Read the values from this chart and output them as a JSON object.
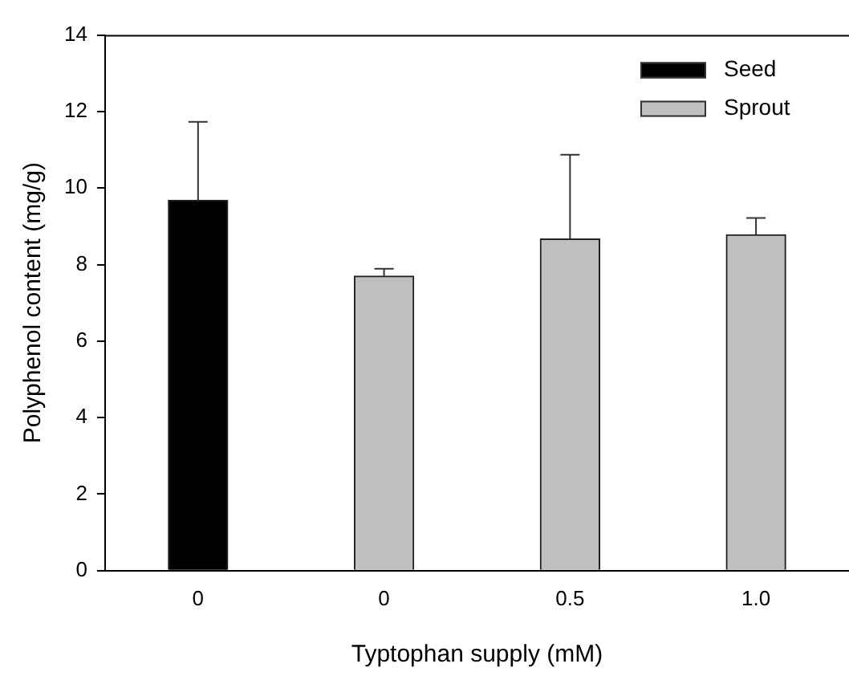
{
  "chart_data": {
    "type": "bar",
    "xlabel": "Typtophan supply (mM)",
    "ylabel": "Polyphenol content (mg/g)",
    "categories": [
      "0",
      "0",
      "0.5",
      "1.0"
    ],
    "series": [
      {
        "name": "Seed",
        "color": "#000000",
        "values": [
          9.68,
          null,
          null,
          null
        ],
        "errors": [
          [
            9.68,
            11.73
          ],
          null,
          null,
          null
        ]
      },
      {
        "name": "Sprout",
        "color": "#c0c0c0",
        "values": [
          null,
          7.7,
          8.67,
          8.78
        ],
        "errors": [
          null,
          [
            7.7,
            7.89
          ],
          [
            8.67,
            10.87
          ],
          [
            8.78,
            9.22
          ]
        ]
      }
    ],
    "ylim": [
      0,
      14
    ],
    "yticks": [
      0,
      2,
      4,
      6,
      8,
      10,
      12,
      14
    ],
    "grid": false,
    "legend": "top right"
  }
}
